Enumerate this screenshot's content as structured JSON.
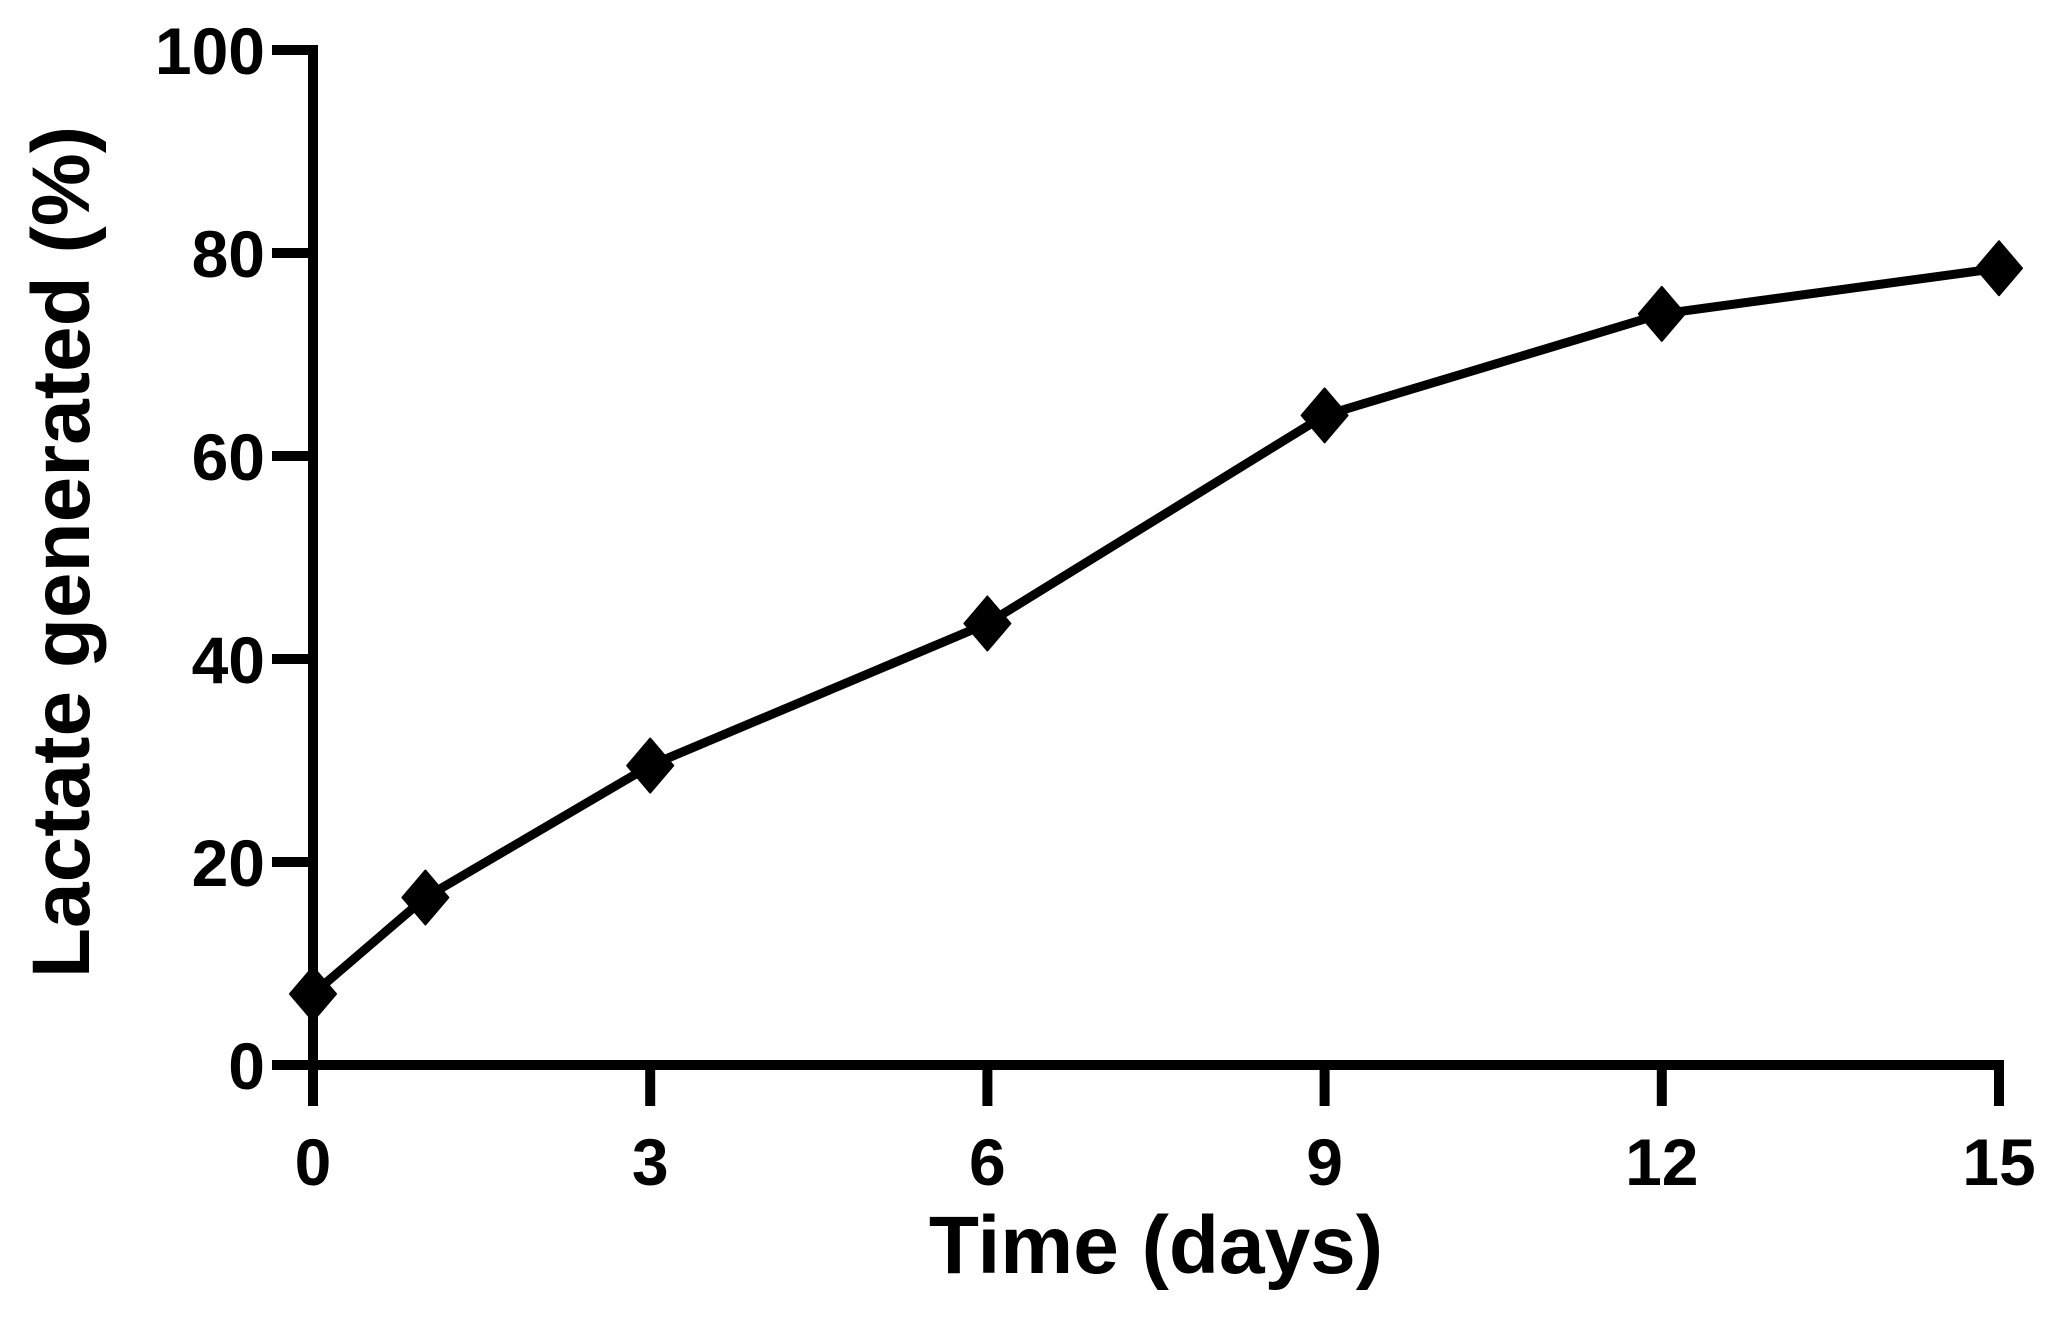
{
  "figure": {
    "background_color": "#ffffff",
    "ink_color": "#000000"
  },
  "chart_data": {
    "type": "line",
    "title": "",
    "xlabel": "Time (days)",
    "ylabel": "Lactate generated (%)",
    "x": [
      0,
      1,
      3,
      6,
      9,
      12,
      15
    ],
    "y": [
      7,
      16.5,
      29.5,
      43.5,
      64,
      74,
      78.5
    ],
    "series": [
      {
        "name": "Lactate generated",
        "x": [
          0,
          1,
          3,
          6,
          9,
          12,
          15
        ],
        "y": [
          7,
          16.5,
          29.5,
          43.5,
          64,
          74,
          78.5
        ]
      }
    ],
    "x_ticks": [
      0,
      3,
      6,
      9,
      12,
      15
    ],
    "y_ticks": [
      0,
      20,
      40,
      60,
      80,
      100
    ],
    "xlim": [
      0,
      15
    ],
    "ylim": [
      0,
      100
    ],
    "marker": "diamond",
    "marker_color": "#000000",
    "line_color": "#000000",
    "grid": false,
    "legend": false
  }
}
